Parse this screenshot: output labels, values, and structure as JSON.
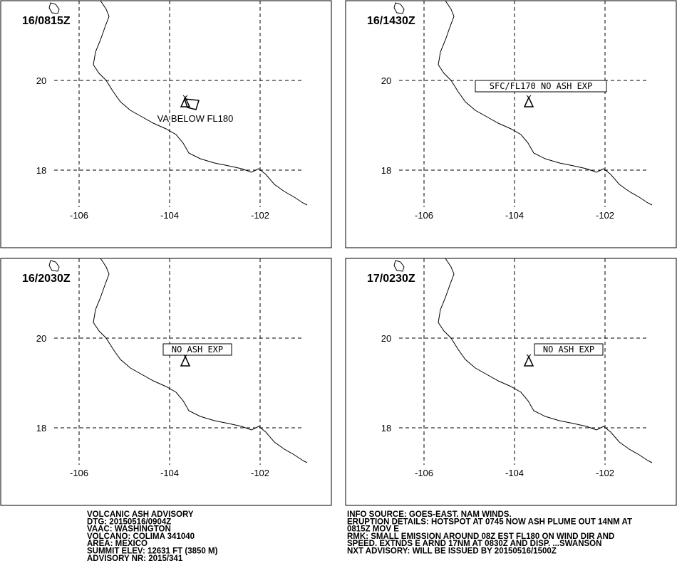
{
  "panels": [
    {
      "time": "16/0815Z",
      "annotation": "VA BELOW FL180"
    },
    {
      "time": "16/1430Z",
      "annotation": "SFC/FL170 NO ASH EXP"
    },
    {
      "time": "16/2030Z",
      "annotation": "NO ASH EXP"
    },
    {
      "time": "17/0230Z",
      "annotation": "NO ASH EXP"
    }
  ],
  "lon_ticks": [
    -106,
    -104,
    -102
  ],
  "lat_ticks": [
    20,
    18
  ],
  "footer": {
    "left": [
      "VOLCANIC ASH ADVISORY",
      "DTG: 20150516/0904Z",
      "VAAC: WASHINGTON",
      "VOLCANO: COLIMA 341040",
      "AREA: MEXICO",
      "SUMMIT ELEV: 12631 FT (3850 M)",
      "ADVISORY NR: 2015/341"
    ],
    "right": [
      "INFO SOURCE: GOES-EAST. NAM WINDS.",
      "ERUPTION DETAILS: HOTSPOT AT 0745 NOW ASH PLUME OUT 14NM AT",
      "0815Z MOV E",
      "RMK: SMALL EMISSION AROUND 08Z EST FL180 ON WIND DIR AND",
      "SPEED. EXTNDS E ARND 17NM AT 0830Z AND DISP. ...SWANSON",
      "NXT ADVISORY: WILL BE ISSUED BY 20150516/1500Z"
    ]
  }
}
